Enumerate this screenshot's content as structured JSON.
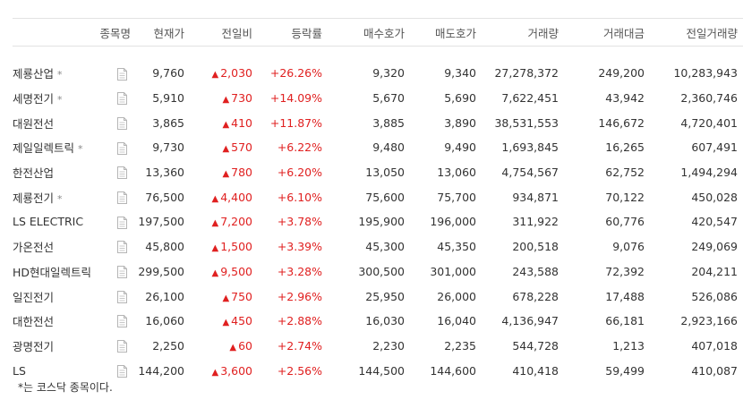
{
  "headers": [
    "종목명",
    "현재가",
    "전일비",
    "등락률",
    "매수호가",
    "매도호가",
    "거래량",
    "거래대금",
    "전일거래량"
  ],
  "kosdaq_marker": "*",
  "rows": [
    {
      "name": "제룡산업",
      "kosdaq": true,
      "price": "9,760",
      "change": "2,030",
      "rate": "+26.26%",
      "bid": "9,320",
      "ask": "9,340",
      "volume": "27,278,372",
      "amount": "249,200",
      "prev_volume": "10,283,943"
    },
    {
      "name": "세명전기",
      "kosdaq": true,
      "price": "5,910",
      "change": "730",
      "rate": "+14.09%",
      "bid": "5,670",
      "ask": "5,690",
      "volume": "7,622,451",
      "amount": "43,942",
      "prev_volume": "2,360,746"
    },
    {
      "name": "대원전선",
      "kosdaq": false,
      "price": "3,865",
      "change": "410",
      "rate": "+11.87%",
      "bid": "3,885",
      "ask": "3,890",
      "volume": "38,531,553",
      "amount": "146,672",
      "prev_volume": "4,720,401"
    },
    {
      "name": "제일일렉트릭",
      "kosdaq": true,
      "price": "9,730",
      "change": "570",
      "rate": "+6.22%",
      "bid": "9,480",
      "ask": "9,490",
      "volume": "1,693,845",
      "amount": "16,265",
      "prev_volume": "607,491"
    },
    {
      "name": "한전산업",
      "kosdaq": false,
      "price": "13,360",
      "change": "780",
      "rate": "+6.20%",
      "bid": "13,050",
      "ask": "13,060",
      "volume": "4,754,567",
      "amount": "62,752",
      "prev_volume": "1,494,294"
    },
    {
      "name": "제룡전기",
      "kosdaq": true,
      "price": "76,500",
      "change": "4,400",
      "rate": "+6.10%",
      "bid": "75,600",
      "ask": "75,700",
      "volume": "934,871",
      "amount": "70,122",
      "prev_volume": "450,028"
    },
    {
      "name": "LS ELECTRIC",
      "kosdaq": false,
      "price": "197,500",
      "change": "7,200",
      "rate": "+3.78%",
      "bid": "195,900",
      "ask": "196,000",
      "volume": "311,922",
      "amount": "60,776",
      "prev_volume": "420,547"
    },
    {
      "name": "가온전선",
      "kosdaq": false,
      "price": "45,800",
      "change": "1,500",
      "rate": "+3.39%",
      "bid": "45,300",
      "ask": "45,350",
      "volume": "200,518",
      "amount": "9,076",
      "prev_volume": "249,069"
    },
    {
      "name": "HD현대일렉트릭",
      "kosdaq": false,
      "price": "299,500",
      "change": "9,500",
      "rate": "+3.28%",
      "bid": "300,500",
      "ask": "301,000",
      "volume": "243,588",
      "amount": "72,392",
      "prev_volume": "204,211"
    },
    {
      "name": "일진전기",
      "kosdaq": false,
      "price": "26,100",
      "change": "750",
      "rate": "+2.96%",
      "bid": "25,950",
      "ask": "26,000",
      "volume": "678,228",
      "amount": "17,488",
      "prev_volume": "526,086"
    },
    {
      "name": "대한전선",
      "kosdaq": false,
      "price": "16,060",
      "change": "450",
      "rate": "+2.88%",
      "bid": "16,030",
      "ask": "16,040",
      "volume": "4,136,947",
      "amount": "66,181",
      "prev_volume": "2,923,166"
    },
    {
      "name": "광명전기",
      "kosdaq": false,
      "price": "2,250",
      "change": "60",
      "rate": "+2.74%",
      "bid": "2,230",
      "ask": "2,235",
      "volume": "544,728",
      "amount": "1,213",
      "prev_volume": "407,018"
    },
    {
      "name": "LS",
      "kosdaq": false,
      "price": "144,200",
      "change": "3,600",
      "rate": "+2.56%",
      "bid": "144,500",
      "ask": "144,600",
      "volume": "410,418",
      "amount": "59,499",
      "prev_volume": "410,087"
    }
  ],
  "footnote": "*는 코스닥 종목이다.",
  "colors": {
    "up": "#e02020",
    "text": "#333333",
    "border": "#e2e2e2"
  },
  "icons": {
    "doc": "document-icon",
    "up": "up-triangle-icon"
  }
}
